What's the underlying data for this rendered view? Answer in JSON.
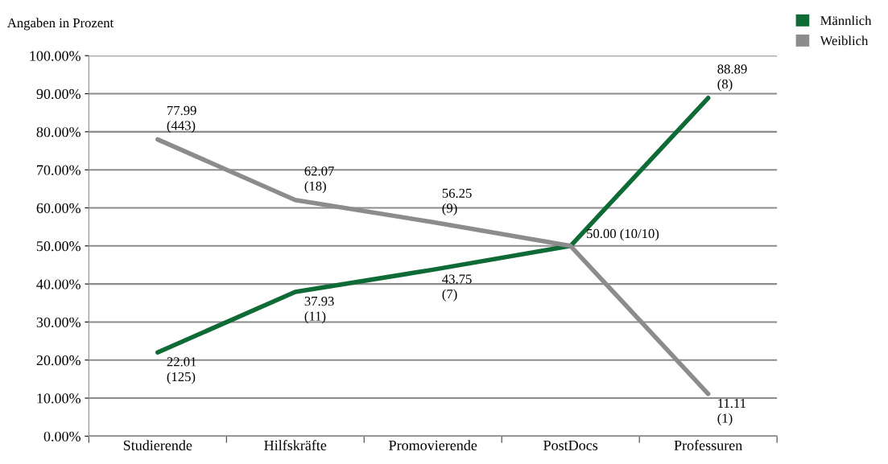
{
  "chart_data": {
    "type": "line",
    "ylabel": "Angaben in Prozent",
    "categories": [
      "Studierende",
      "Hilfskräfte",
      "Promovierende",
      "PostDocs",
      "Professuren"
    ],
    "series": [
      {
        "name": "Männlich",
        "color": "#0e6b36",
        "values": [
          22.01,
          37.93,
          43.75,
          50.0,
          88.89
        ],
        "value_labels": [
          "22.01\n(125)",
          "37.93\n(11)",
          "43.75\n(7)",
          "50.00 (10/10)",
          "88.89\n(8)"
        ]
      },
      {
        "name": "Weiblich",
        "color": "#8c8c8c",
        "values": [
          77.99,
          62.07,
          56.25,
          50.0,
          11.11
        ],
        "value_labels": [
          "77.99\n(443)",
          "62.07\n(18)",
          "56.25\n(9)",
          null,
          "11.11\n(1)"
        ]
      }
    ],
    "ylim": [
      0,
      100
    ],
    "yticks": [
      {
        "value": 0,
        "label": "0.00%"
      },
      {
        "value": 10,
        "label": "10.00%"
      },
      {
        "value": 20,
        "label": "20.00%"
      },
      {
        "value": 30,
        "label": "30.00%"
      },
      {
        "value": 40,
        "label": "40.00%"
      },
      {
        "value": 50,
        "label": "50.00%"
      },
      {
        "value": 60,
        "label": "60.00%"
      },
      {
        "value": 70,
        "label": "70.00%"
      },
      {
        "value": 80,
        "label": "80.00%"
      },
      {
        "value": 90,
        "label": "90.00%"
      },
      {
        "value": 100,
        "label": "100.00%"
      }
    ],
    "grid": "y",
    "legend": "top right",
    "marker": "none",
    "line_style": "solid"
  }
}
